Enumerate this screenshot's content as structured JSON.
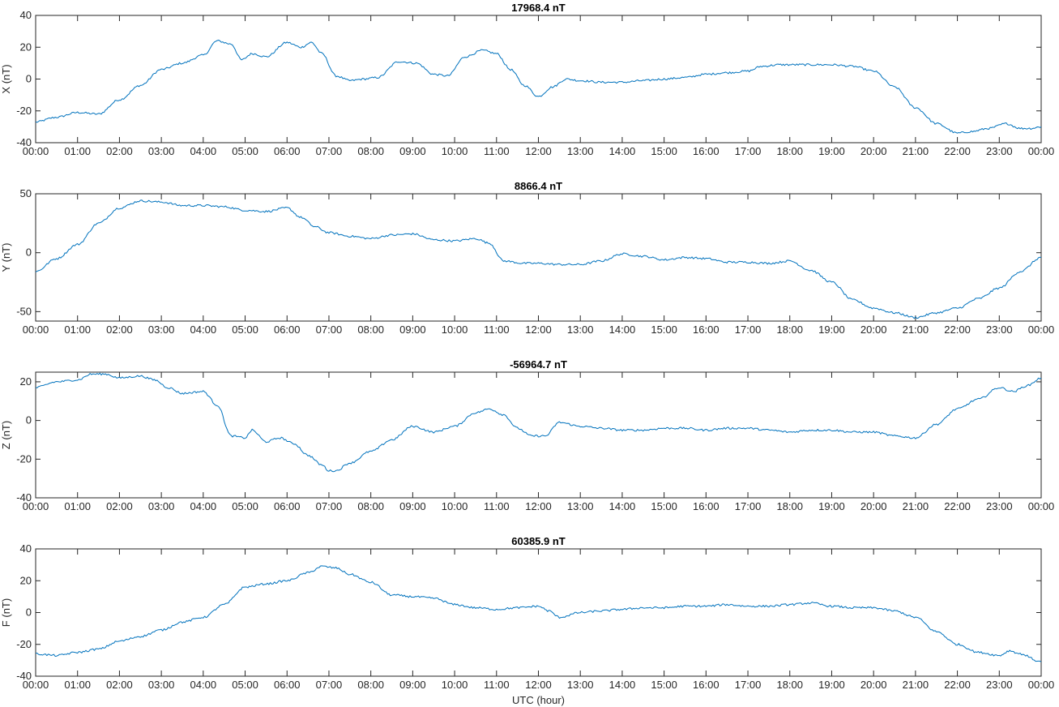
{
  "colors": {
    "series": "#0072BD",
    "axes": "#262626",
    "background": "#ffffff"
  },
  "chart_data": [
    {
      "type": "line",
      "title": "17968.4 nT",
      "ylabel": "X (nT)",
      "xlabel": "",
      "ylim": [
        -40,
        40
      ],
      "yticks": [
        -40,
        -20,
        0,
        20,
        40
      ],
      "xlim": [
        "00:00",
        "24:00"
      ],
      "xtick_labels": [
        "00:00",
        "01:00",
        "02:00",
        "03:00",
        "04:00",
        "05:00",
        "06:00",
        "07:00",
        "08:00",
        "09:00",
        "10:00",
        "11:00",
        "12:00",
        "13:00",
        "14:00",
        "15:00",
        "16:00",
        "17:00",
        "18:00",
        "19:00",
        "20:00",
        "21:00",
        "22:00",
        "23:00",
        "00:00"
      ],
      "grid": false,
      "series": [
        {
          "x": [
            "00:00",
            "00:30",
            "01:00",
            "01:30",
            "02:00",
            "02:30",
            "03:00",
            "03:30",
            "04:00",
            "04:20",
            "04:40",
            "04:55",
            "05:10",
            "05:30",
            "06:00",
            "06:20",
            "06:35",
            "06:50",
            "07:10",
            "07:30",
            "07:50",
            "08:10",
            "08:40",
            "09:05",
            "09:30",
            "09:50",
            "10:15",
            "10:40",
            "11:00",
            "11:20",
            "11:40",
            "12:00",
            "12:20",
            "12:40",
            "13:00",
            "13:30",
            "14:00",
            "14:30",
            "15:00",
            "15:30",
            "16:00",
            "16:30",
            "17:00",
            "17:20",
            "17:45",
            "18:00",
            "18:30",
            "19:00",
            "19:30",
            "20:00",
            "20:30",
            "21:00",
            "21:30",
            "22:00",
            "22:20",
            "22:45",
            "23:10",
            "23:30",
            "23:45",
            "24:00"
          ],
          "y": [
            -27,
            -24,
            -21,
            -22,
            -13,
            -4,
            6,
            10,
            15,
            24,
            22,
            12,
            16,
            14,
            23,
            20,
            23,
            16,
            2,
            -1,
            0,
            1,
            11,
            10,
            3,
            2,
            14,
            18,
            16,
            6,
            -4,
            -11,
            -5,
            0,
            -1,
            -2,
            -2,
            -1,
            0,
            1,
            3,
            4,
            5,
            8,
            9,
            9,
            9,
            9,
            8,
            5,
            -5,
            -18,
            -28,
            -34,
            -33,
            -31,
            -28,
            -31,
            -31,
            -30
          ]
        }
      ]
    },
    {
      "type": "line",
      "title": "8866.4 nT",
      "ylabel": "Y (nT)",
      "xlabel": "",
      "ylim": [
        -58,
        50
      ],
      "yticks": [
        -50,
        0,
        50
      ],
      "xlim": [
        "00:00",
        "24:00"
      ],
      "xtick_labels": [
        "00:00",
        "01:00",
        "02:00",
        "03:00",
        "04:00",
        "05:00",
        "06:00",
        "07:00",
        "08:00",
        "09:00",
        "10:00",
        "11:00",
        "12:00",
        "13:00",
        "14:00",
        "15:00",
        "16:00",
        "17:00",
        "18:00",
        "19:00",
        "20:00",
        "21:00",
        "22:00",
        "23:00",
        "00:00"
      ],
      "grid": false,
      "series": [
        {
          "x": [
            "00:00",
            "00:30",
            "01:00",
            "01:30",
            "02:00",
            "02:30",
            "03:00",
            "03:30",
            "04:00",
            "04:30",
            "05:00",
            "05:30",
            "06:00",
            "06:20",
            "06:40",
            "07:00",
            "07:30",
            "08:00",
            "08:30",
            "09:00",
            "09:30",
            "10:00",
            "10:30",
            "10:50",
            "11:10",
            "11:40",
            "12:00",
            "12:30",
            "13:00",
            "13:30",
            "14:00",
            "14:30",
            "15:00",
            "15:30",
            "16:00",
            "16:30",
            "17:00",
            "17:30",
            "18:00",
            "18:30",
            "19:00",
            "19:30",
            "20:00",
            "20:30",
            "21:00",
            "21:30",
            "22:00",
            "22:30",
            "23:00",
            "23:30",
            "24:00"
          ],
          "y": [
            -16,
            -5,
            7,
            25,
            38,
            44,
            43,
            40,
            40,
            39,
            36,
            35,
            38,
            30,
            22,
            17,
            14,
            12,
            15,
            16,
            11,
            10,
            12,
            8,
            -7,
            -9,
            -9,
            -10,
            -10,
            -7,
            -1,
            -3,
            -6,
            -4,
            -5,
            -8,
            -8,
            -9,
            -7,
            -15,
            -25,
            -40,
            -47,
            -51,
            -55,
            -51,
            -47,
            -39,
            -30,
            -16,
            -4
          ]
        }
      ]
    },
    {
      "type": "line",
      "title": "-56964.7 nT",
      "ylabel": "Z (nT)",
      "xlabel": "",
      "ylim": [
        -40,
        25
      ],
      "yticks": [
        -40,
        -20,
        0,
        20
      ],
      "xlim": [
        "00:00",
        "24:00"
      ],
      "xtick_labels": [
        "00:00",
        "01:00",
        "02:00",
        "03:00",
        "04:00",
        "05:00",
        "06:00",
        "07:00",
        "08:00",
        "09:00",
        "10:00",
        "11:00",
        "12:00",
        "13:00",
        "14:00",
        "15:00",
        "16:00",
        "17:00",
        "18:00",
        "19:00",
        "20:00",
        "21:00",
        "22:00",
        "23:00",
        "00:00"
      ],
      "grid": false,
      "series": [
        {
          "x": [
            "00:00",
            "00:30",
            "01:00",
            "01:20",
            "01:40",
            "02:00",
            "02:30",
            "02:50",
            "03:10",
            "03:30",
            "04:00",
            "04:20",
            "04:40",
            "05:00",
            "05:10",
            "05:30",
            "05:50",
            "06:10",
            "06:30",
            "06:50",
            "07:00",
            "07:10",
            "07:30",
            "08:00",
            "08:30",
            "09:00",
            "09:30",
            "10:00",
            "10:30",
            "10:50",
            "11:10",
            "11:30",
            "11:50",
            "12:10",
            "12:30",
            "13:00",
            "13:30",
            "14:00",
            "14:30",
            "15:00",
            "15:30",
            "16:00",
            "16:30",
            "17:00",
            "17:30",
            "18:00",
            "18:30",
            "19:00",
            "19:30",
            "20:00",
            "20:30",
            "21:00",
            "21:30",
            "22:00",
            "22:30",
            "23:00",
            "23:20",
            "23:40",
            "24:00"
          ],
          "y": [
            17,
            20,
            21,
            24,
            24,
            22,
            23,
            21,
            17,
            14,
            15,
            8,
            -8,
            -9,
            -5,
            -11,
            -9,
            -12,
            -18,
            -23,
            -26,
            -26,
            -22,
            -16,
            -10,
            -3,
            -6,
            -3,
            4,
            6,
            3,
            -4,
            -8,
            -8,
            -1,
            -3,
            -4,
            -5,
            -5,
            -4,
            -4,
            -5,
            -4,
            -4,
            -5,
            -6,
            -5,
            -5,
            -6,
            -6,
            -8,
            -9,
            -2,
            6,
            11,
            17,
            15,
            18,
            22
          ]
        }
      ]
    },
    {
      "type": "line",
      "title": "60385.9 nT",
      "ylabel": "F (nT)",
      "xlabel": "UTC (hour)",
      "ylim": [
        -40,
        40
      ],
      "yticks": [
        -40,
        -20,
        0,
        20,
        40
      ],
      "xlim": [
        "00:00",
        "24:00"
      ],
      "xtick_labels": [
        "00:00",
        "01:00",
        "02:00",
        "03:00",
        "04:00",
        "05:00",
        "06:00",
        "07:00",
        "08:00",
        "09:00",
        "10:00",
        "11:00",
        "12:00",
        "13:00",
        "14:00",
        "15:00",
        "16:00",
        "17:00",
        "18:00",
        "19:00",
        "20:00",
        "21:00",
        "22:00",
        "23:00",
        "00:00"
      ],
      "grid": false,
      "series": [
        {
          "x": [
            "00:00",
            "00:30",
            "01:00",
            "01:30",
            "02:00",
            "02:30",
            "03:00",
            "03:30",
            "04:00",
            "04:30",
            "05:00",
            "05:30",
            "06:00",
            "06:30",
            "06:50",
            "07:10",
            "07:30",
            "08:00",
            "08:30",
            "09:00",
            "09:30",
            "10:00",
            "10:30",
            "11:00",
            "11:30",
            "12:00",
            "12:15",
            "12:30",
            "13:00",
            "13:30",
            "14:00",
            "14:30",
            "15:00",
            "15:30",
            "16:00",
            "16:30",
            "17:00",
            "17:30",
            "18:00",
            "18:30",
            "19:00",
            "19:30",
            "20:00",
            "20:30",
            "21:00",
            "21:30",
            "22:00",
            "22:30",
            "23:00",
            "23:15",
            "23:30",
            "24:00"
          ],
          "y": [
            -26,
            -27,
            -25,
            -23,
            -18,
            -15,
            -11,
            -6,
            -3,
            5,
            16,
            18,
            20,
            25,
            29,
            28,
            24,
            19,
            11,
            10,
            9,
            5,
            3,
            2,
            3,
            4,
            1,
            -3,
            0,
            1,
            2,
            3,
            3,
            4,
            4,
            5,
            4,
            4,
            5,
            6,
            4,
            3,
            3,
            1,
            -3,
            -12,
            -20,
            -25,
            -27,
            -24,
            -26,
            -31
          ]
        }
      ]
    }
  ]
}
